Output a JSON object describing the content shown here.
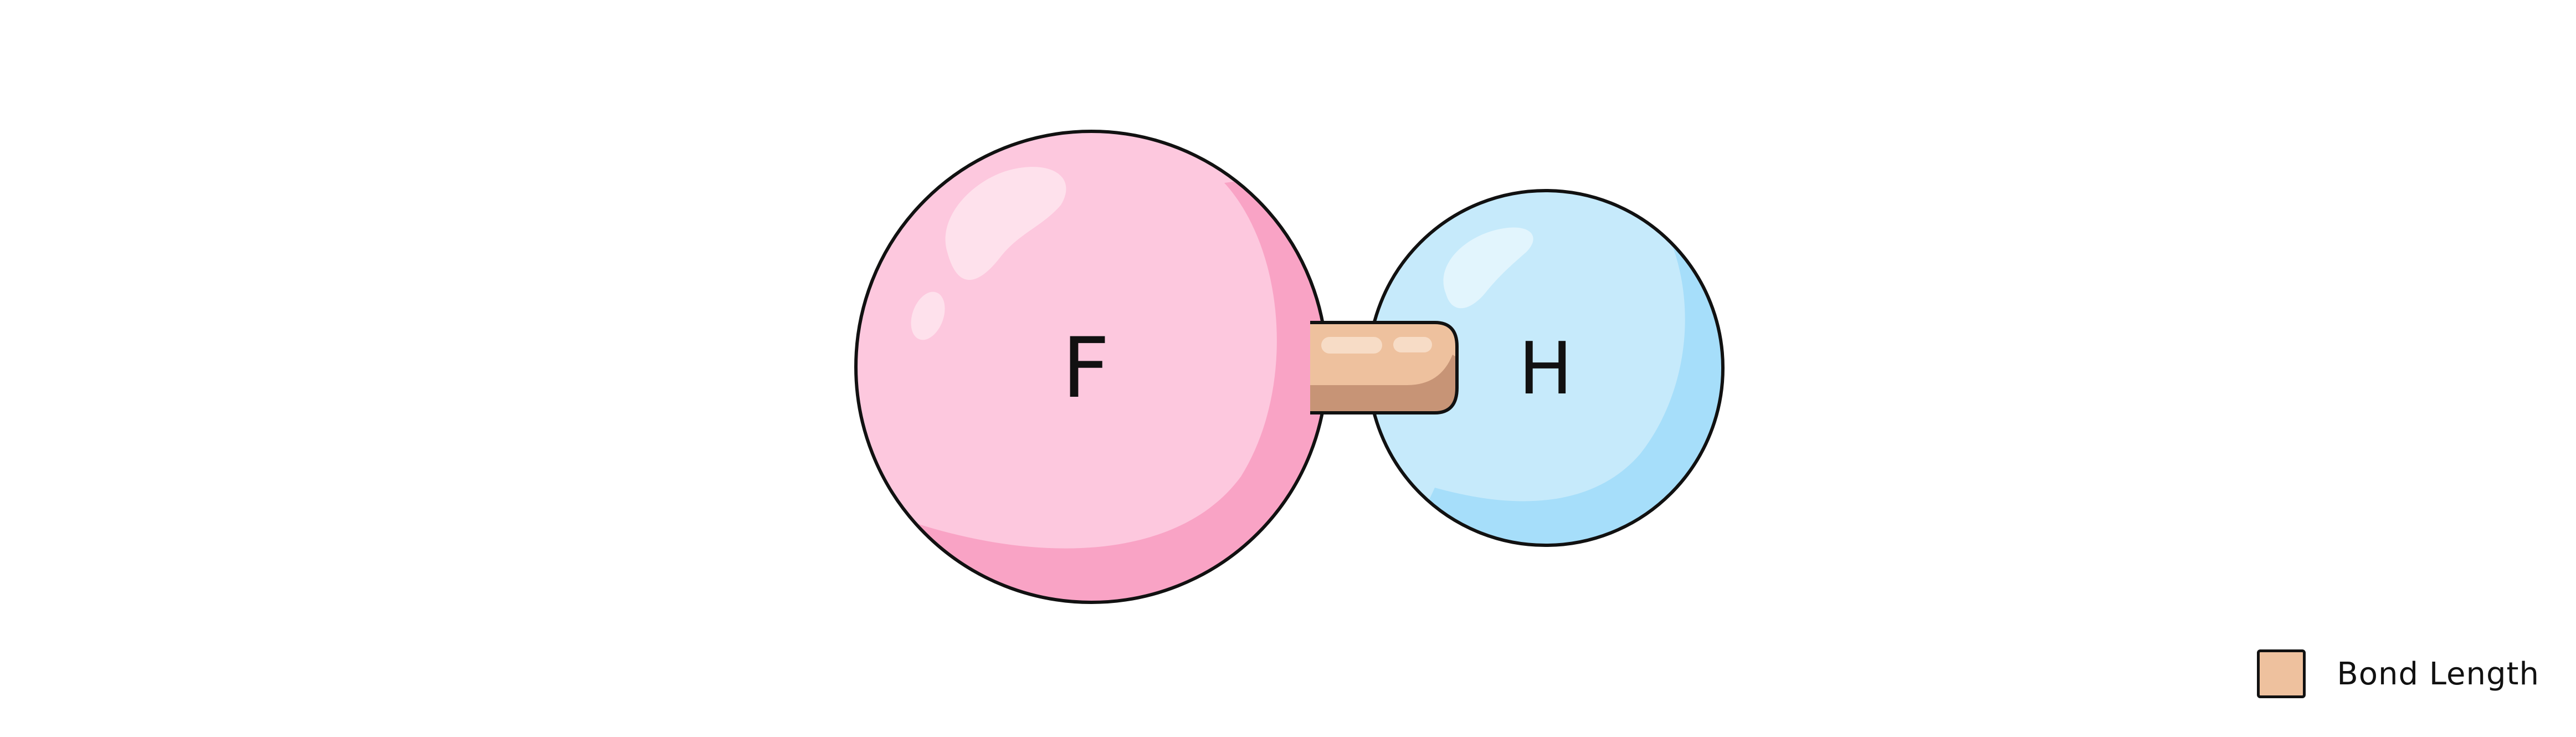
{
  "molecule": {
    "atoms": [
      {
        "symbol": "F",
        "element": "fluorine"
      },
      {
        "symbol": "H",
        "element": "hydrogen"
      }
    ],
    "bond": {
      "type": "single",
      "from": "F",
      "to": "H"
    }
  },
  "legend": {
    "items": [
      {
        "label": "Bond Length",
        "color": "#EEC19E"
      }
    ]
  },
  "colors": {
    "fluorine_base": "#FDC8DE",
    "fluorine_shade": "#F9A3C5",
    "hydrogen_base": "#C6EAFB",
    "hydrogen_shade": "#A6DEFA",
    "bond_base": "#EEC19E",
    "bond_shade": "#C79476",
    "outline": "#111111"
  }
}
